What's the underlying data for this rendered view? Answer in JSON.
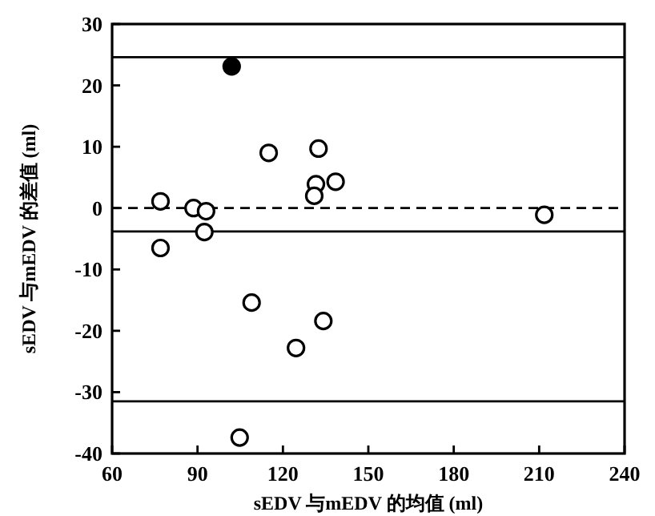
{
  "chart_data": {
    "type": "scatter",
    "xlabel": "sEDV 与mEDV 的均值 (ml)",
    "ylabel": "sEDV 与mEDV 的差值 (ml)",
    "xlim": [
      60,
      240
    ],
    "ylim": [
      -40,
      30
    ],
    "xticks": [
      60,
      90,
      120,
      150,
      180,
      210,
      240
    ],
    "yticks": [
      -40,
      -30,
      -20,
      -10,
      0,
      10,
      20,
      30
    ],
    "grid": false,
    "marker": "circle",
    "series": [
      {
        "color": "#ffffff",
        "x": [
          77,
          77,
          88.6,
          93,
          92.4,
          115,
          132.5,
          131.6,
          131,
          138.5,
          109,
          124.6,
          134.2,
          104.8,
          211.8
        ],
        "values": [
          1.1,
          -6.5,
          0,
          -0.5,
          -3.9,
          9,
          9.7,
          3.9,
          2,
          4.3,
          -15.4,
          -22.8,
          -18.4,
          -37.4,
          -1.1
        ]
      },
      {
        "color": "#000000",
        "x": [
          102
        ],
        "values": [
          23.1
        ]
      }
    ],
    "ref_lines": [
      {
        "axis": "y",
        "value": 24.6,
        "line_style": "solid"
      },
      {
        "axis": "y",
        "value": 0,
        "line_style": "dashed"
      },
      {
        "axis": "y",
        "value": -3.8,
        "line_style": "solid"
      },
      {
        "axis": "y",
        "value": -31.5,
        "line_style": "solid"
      }
    ]
  }
}
